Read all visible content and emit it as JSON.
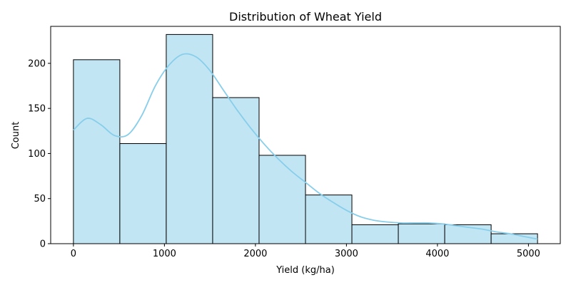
{
  "chart_data": {
    "type": "bar",
    "subtype": "histogram-with-kde",
    "title": "Distribution of Wheat Yield",
    "xlabel": "Yield (kg/ha)",
    "ylabel": "Count",
    "xlim": [
      -250,
      5350
    ],
    "ylim": [
      0,
      241
    ],
    "xticks": [
      0,
      1000,
      2000,
      3000,
      4000,
      5000
    ],
    "yticks": [
      0,
      50,
      100,
      150,
      200
    ],
    "bins": [
      {
        "x0": 0,
        "x1": 510,
        "count": 204
      },
      {
        "x0": 510,
        "x1": 1020,
        "count": 111
      },
      {
        "x0": 1020,
        "x1": 1530,
        "count": 232
      },
      {
        "x0": 1530,
        "x1": 2040,
        "count": 162
      },
      {
        "x0": 2040,
        "x1": 2550,
        "count": 98
      },
      {
        "x0": 2550,
        "x1": 3060,
        "count": 54
      },
      {
        "x0": 3060,
        "x1": 3570,
        "count": 21
      },
      {
        "x0": 3570,
        "x1": 4080,
        "count": 22
      },
      {
        "x0": 4080,
        "x1": 4590,
        "count": 21
      },
      {
        "x0": 4590,
        "x1": 5100,
        "count": 11
      }
    ],
    "kde": {
      "x": [
        0,
        150,
        300,
        450,
        600,
        750,
        900,
        1050,
        1200,
        1350,
        1500,
        1650,
        1800,
        1950,
        2100,
        2250,
        2400,
        2550,
        2700,
        2850,
        3000,
        3150,
        3300,
        3450,
        3600,
        3750,
        3900,
        4050,
        4200,
        4350,
        4500,
        4650,
        4800,
        4950,
        5100
      ],
      "y": [
        126,
        139,
        132,
        120,
        121,
        142,
        175,
        198,
        210,
        207,
        192,
        170,
        148,
        128,
        110,
        94,
        80,
        68,
        56,
        46,
        37,
        30,
        26,
        24,
        23,
        23,
        23,
        22,
        20,
        18,
        16,
        13,
        11,
        8,
        5
      ]
    },
    "grid": false,
    "colors": {
      "bar_fill": "#c2e5f4",
      "bar_edge": "#000000",
      "kde_line": "#87ceeb"
    }
  }
}
